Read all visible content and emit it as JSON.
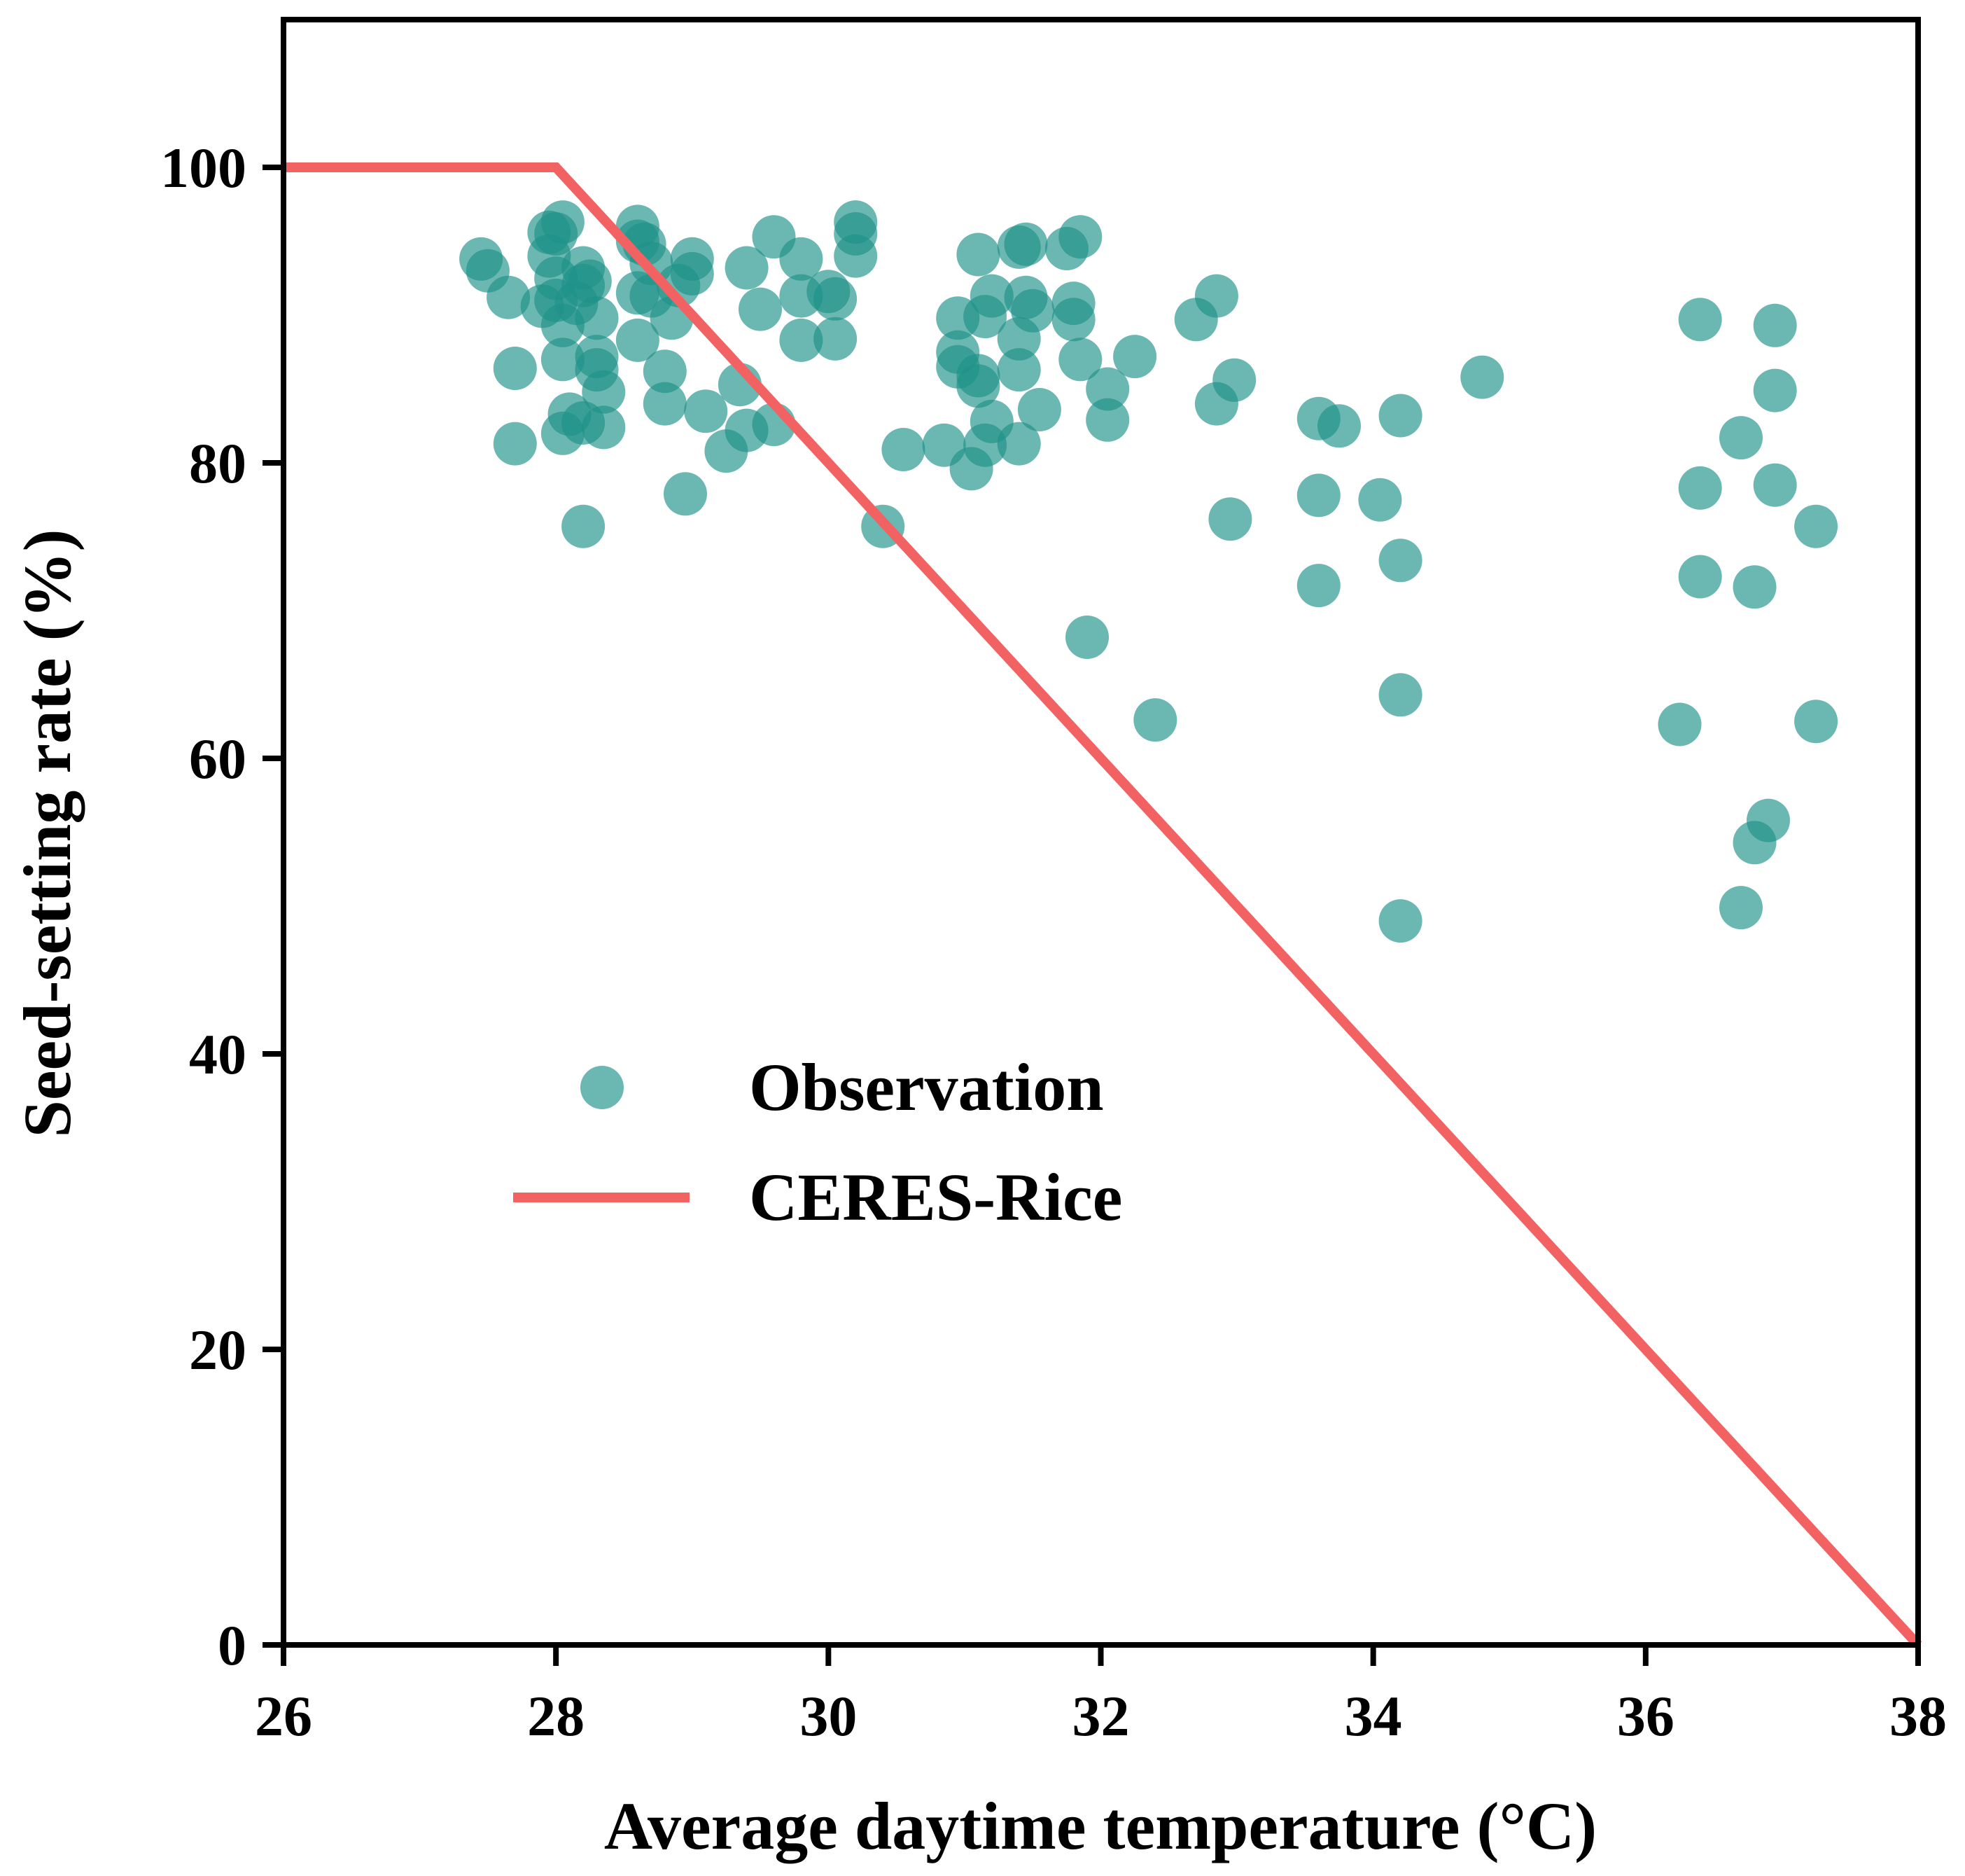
{
  "chart_data": {
    "type": "scatter",
    "xlabel": "Average daytime temperature (°C)",
    "ylabel": "Seed-setting rate (%)",
    "xlim": [
      26,
      38
    ],
    "ylim": [
      0,
      110
    ],
    "x_ticks": [
      "26",
      "28",
      "30",
      "32",
      "34",
      "36",
      "38"
    ],
    "y_ticks": [
      "0",
      "20",
      "40",
      "60",
      "80",
      "100"
    ],
    "grid": false,
    "legend_placement": "center-left",
    "series": [
      {
        "name": "Observation",
        "kind": "scatter",
        "color": "#1f9189",
        "points": [
          [
            27.45,
            93.8
          ],
          [
            27.5,
            93.0
          ],
          [
            27.65,
            91.2
          ],
          [
            27.7,
            86.4
          ],
          [
            27.7,
            81.3
          ],
          [
            27.95,
            95.6
          ],
          [
            27.95,
            94.0
          ],
          [
            28.0,
            95.5
          ],
          [
            28.0,
            92.5
          ],
          [
            28.0,
            91.0
          ],
          [
            27.9,
            90.6
          ],
          [
            28.05,
            96.3
          ],
          [
            28.05,
            89.3
          ],
          [
            28.05,
            87.0
          ],
          [
            28.05,
            82.0
          ],
          [
            28.1,
            83.3
          ],
          [
            28.15,
            90.8
          ],
          [
            28.2,
            93.2
          ],
          [
            28.2,
            92.0
          ],
          [
            28.2,
            82.7
          ],
          [
            28.2,
            75.7
          ],
          [
            28.25,
            92.3
          ],
          [
            28.3,
            89.8
          ],
          [
            28.3,
            87.2
          ],
          [
            28.3,
            86.3
          ],
          [
            28.35,
            82.4
          ],
          [
            28.35,
            84.8
          ],
          [
            28.6,
            96.0
          ],
          [
            28.6,
            95.0
          ],
          [
            28.65,
            94.8
          ],
          [
            28.7,
            93.5
          ],
          [
            28.6,
            91.5
          ],
          [
            28.7,
            91.3
          ],
          [
            28.6,
            88.3
          ],
          [
            28.8,
            86.2
          ],
          [
            28.8,
            84.0
          ],
          [
            28.9,
            92.0
          ],
          [
            28.85,
            89.8
          ],
          [
            28.95,
            77.9
          ],
          [
            29.0,
            93.8
          ],
          [
            29.0,
            92.8
          ],
          [
            29.1,
            83.5
          ],
          [
            29.25,
            80.8
          ],
          [
            29.35,
            85.3
          ],
          [
            29.4,
            93.2
          ],
          [
            29.4,
            82.2
          ],
          [
            29.5,
            90.4
          ],
          [
            29.6,
            95.3
          ],
          [
            29.6,
            82.6
          ],
          [
            29.8,
            93.8
          ],
          [
            29.8,
            91.3
          ],
          [
            29.8,
            88.3
          ],
          [
            30.0,
            91.6
          ],
          [
            30.05,
            91.1
          ],
          [
            30.05,
            88.4
          ],
          [
            30.2,
            96.3
          ],
          [
            30.2,
            95.5
          ],
          [
            30.2,
            94.0
          ],
          [
            30.4,
            75.7
          ],
          [
            30.55,
            80.9
          ],
          [
            30.85,
            81.2
          ],
          [
            30.95,
            89.8
          ],
          [
            30.95,
            87.5
          ],
          [
            30.95,
            86.5
          ],
          [
            31.05,
            79.6
          ],
          [
            31.1,
            94.1
          ],
          [
            31.1,
            85.9
          ],
          [
            31.1,
            85.2
          ],
          [
            31.15,
            89.9
          ],
          [
            31.15,
            81.2
          ],
          [
            31.2,
            91.3
          ],
          [
            31.2,
            82.8
          ],
          [
            31.4,
            94.6
          ],
          [
            31.45,
            94.8
          ],
          [
            31.45,
            91.2
          ],
          [
            31.4,
            88.4
          ],
          [
            31.4,
            86.3
          ],
          [
            31.4,
            81.3
          ],
          [
            31.5,
            90.3
          ],
          [
            31.55,
            83.6
          ],
          [
            31.75,
            94.5
          ],
          [
            31.85,
            95.3
          ],
          [
            31.8,
            90.8
          ],
          [
            31.8,
            89.7
          ],
          [
            31.85,
            87.0
          ],
          [
            31.9,
            68.2
          ],
          [
            32.05,
            85.0
          ],
          [
            32.05,
            82.9
          ],
          [
            32.25,
            87.2
          ],
          [
            32.4,
            62.6
          ],
          [
            32.7,
            89.7
          ],
          [
            32.85,
            91.3
          ],
          [
            32.85,
            84.0
          ],
          [
            32.95,
            76.2
          ],
          [
            32.98,
            85.6
          ],
          [
            33.6,
            83.0
          ],
          [
            33.6,
            77.8
          ],
          [
            33.6,
            71.7
          ],
          [
            33.75,
            82.5
          ],
          [
            34.05,
            77.5
          ],
          [
            34.2,
            83.2
          ],
          [
            34.2,
            73.4
          ],
          [
            34.2,
            64.3
          ],
          [
            34.2,
            49.0
          ],
          [
            34.8,
            85.8
          ],
          [
            36.25,
            62.3
          ],
          [
            36.4,
            89.7
          ],
          [
            36.4,
            78.3
          ],
          [
            36.4,
            72.3
          ],
          [
            36.7,
            81.7
          ],
          [
            36.7,
            49.9
          ],
          [
            36.8,
            71.6
          ],
          [
            36.8,
            54.3
          ],
          [
            36.9,
            55.8
          ],
          [
            36.95,
            89.3
          ],
          [
            36.95,
            78.5
          ],
          [
            36.95,
            84.9
          ],
          [
            37.25,
            75.7
          ],
          [
            37.25,
            62.5
          ]
        ]
      },
      {
        "name": "CERES-Rice",
        "kind": "line",
        "color": "#f26262",
        "points": [
          [
            26,
            100
          ],
          [
            28,
            100
          ],
          [
            38,
            0
          ]
        ]
      }
    ]
  }
}
